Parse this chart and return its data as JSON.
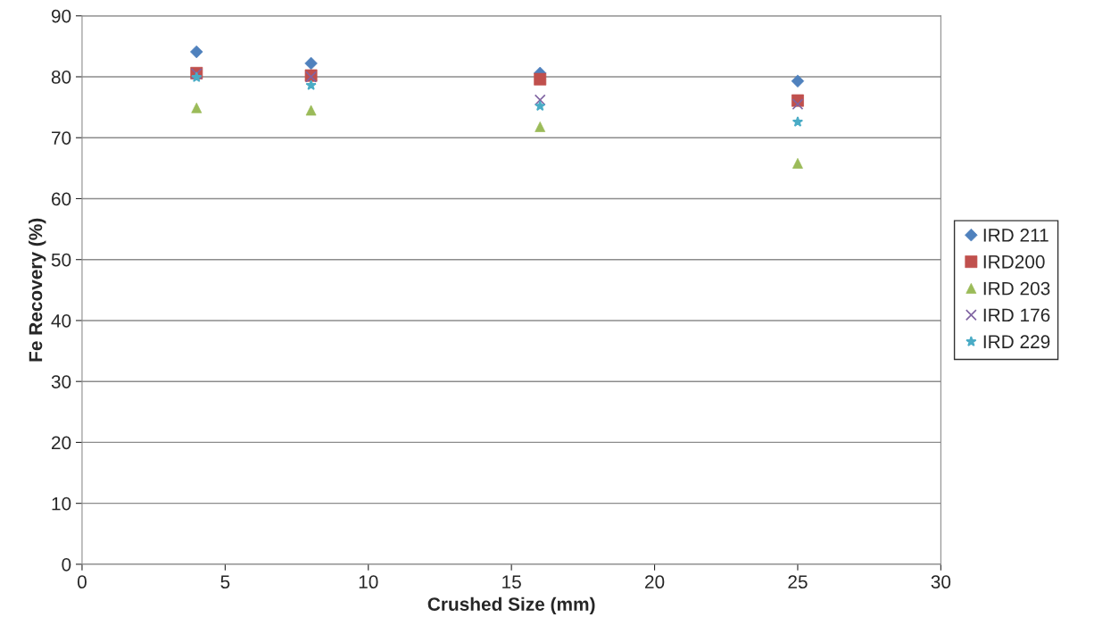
{
  "chart_data": {
    "type": "scatter",
    "xlabel": "Crushed Size (mm)",
    "ylabel": "Fe Recovery (%)",
    "x": [
      4,
      8,
      16,
      25
    ],
    "series": [
      {
        "name": "IRD 211",
        "color": "#4f81bd",
        "marker": "diamond",
        "values": [
          84.1,
          82.2,
          80.6,
          79.3
        ]
      },
      {
        "name": "IRD200",
        "color": "#c0504d",
        "marker": "square",
        "values": [
          80.6,
          80.2,
          79.6,
          76.1
        ]
      },
      {
        "name": "IRD 203",
        "color": "#9bbb59",
        "marker": "triangle",
        "values": [
          74.9,
          74.5,
          71.8,
          65.8
        ]
      },
      {
        "name": "IRD 176",
        "color": "#8064a2",
        "marker": "cross",
        "values": [
          80.5,
          80.0,
          76.2,
          75.5
        ]
      },
      {
        "name": "IRD 229",
        "color": "#4bacc6",
        "marker": "star",
        "values": [
          79.9,
          78.6,
          75.2,
          72.6
        ]
      }
    ],
    "xlim": [
      0,
      30
    ],
    "xticks": [
      0,
      5,
      10,
      15,
      20,
      25,
      30
    ],
    "ylim": [
      0,
      90
    ],
    "yticks": [
      0,
      10,
      20,
      30,
      40,
      50,
      60,
      70,
      80,
      90
    ],
    "grid": "y",
    "legend": "right"
  }
}
